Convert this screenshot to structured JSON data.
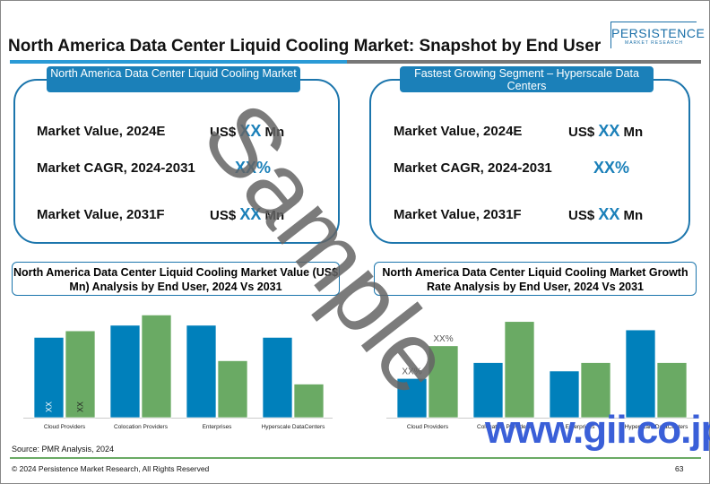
{
  "header": {
    "title": "North America Data Center Liquid Cooling Market: Snapshot by End User",
    "logo_main": "PERSISTENCE",
    "logo_sub": "MARKET RESEARCH"
  },
  "left_box": {
    "heading": "North America Data Center Liquid Cooling Market",
    "rows": [
      {
        "label": "Market Value, 2024E",
        "prefix": "US$ ",
        "value": "XX",
        "suffix": " Mn"
      },
      {
        "label": "Market CAGR, 2024-2031",
        "prefix": "",
        "value": "XX%",
        "suffix": ""
      },
      {
        "label": "Market Value, 2031F",
        "prefix": "US$ ",
        "value": "XX",
        "suffix": " Mn"
      }
    ]
  },
  "right_box": {
    "heading": "Fastest Growing Segment – Hyperscale Data Centers",
    "rows": [
      {
        "label": "Market Value, 2024E",
        "prefix": "US$ ",
        "value": "XX",
        "suffix": " Mn"
      },
      {
        "label": "Market CAGR, 2024-2031",
        "prefix": "",
        "value": "XX%",
        "suffix": ""
      },
      {
        "label": "Market Value, 2031F",
        "prefix": "US$ ",
        "value": "XX",
        "suffix": " Mn"
      }
    ]
  },
  "chart_data": [
    {
      "type": "bar",
      "title": "North America Data Center Liquid Cooling Market Value (US$ Mn) Analysis by End User, 2024 Vs 2031",
      "categories": [
        "Cloud Providers",
        "Colocation Providers",
        "Enterprises",
        "Hyperscale DataCenters"
      ],
      "series": [
        {
          "name": "2024",
          "color": "#0080bb",
          "values": [
            86,
            99,
            99,
            86
          ]
        },
        {
          "name": "2031",
          "color": "#6aaa64",
          "values": [
            93,
            110,
            61,
            36
          ]
        }
      ],
      "data_labels": [
        "XX",
        "XX"
      ],
      "ylim": [
        0,
        120
      ]
    },
    {
      "type": "bar",
      "title": "North America Data Center Liquid Cooling Market Growth Rate Analysis by End User, 2024 Vs 2031",
      "categories": [
        "Cloud Providers",
        "Colocation Providers",
        "Enterprises",
        "Hyperscale DataCenters"
      ],
      "series": [
        {
          "name": "2024",
          "color": "#0080bb",
          "values": [
            42,
            59,
            50,
            94
          ]
        },
        {
          "name": "2031",
          "color": "#6aaa64",
          "values": [
            77,
            103,
            59,
            59
          ]
        }
      ],
      "data_labels": [
        "XX%",
        "XX%"
      ],
      "ylim": [
        0,
        120
      ]
    }
  ],
  "footer": {
    "source": "Source: PMR Analysis, 2024",
    "copyright": "© 2024 Persistence Market Research, All Rights Reserved",
    "page": "63"
  },
  "watermarks": {
    "sample": "Sample",
    "site": "www.gii.co.jp"
  }
}
